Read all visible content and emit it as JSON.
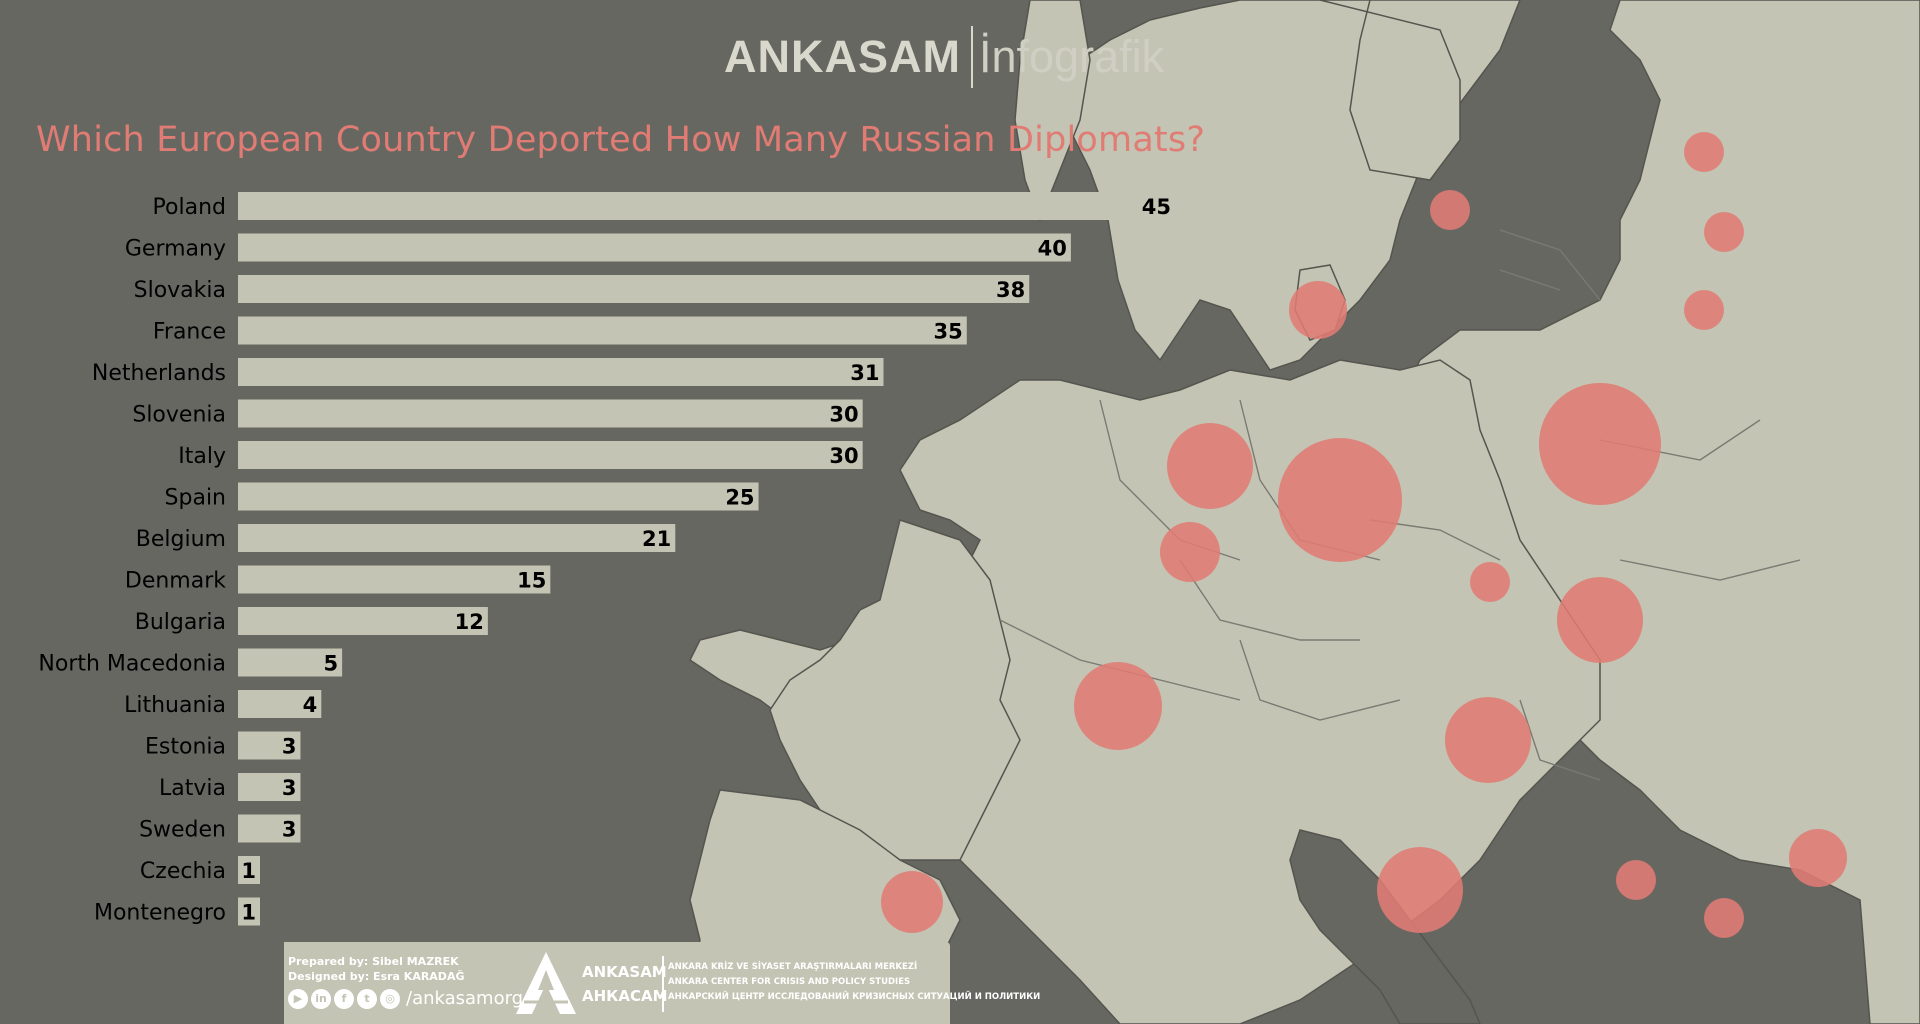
{
  "brand": {
    "name": "ANKASAM",
    "subtitle": "İnfografik"
  },
  "chart_data": {
    "type": "bar",
    "title": "Which European Country Deported How Many Russian Diplomats?",
    "orientation": "horizontal",
    "categories": [
      "Poland",
      "Germany",
      "Slovakia",
      "France",
      "Netherlands",
      "Slovenia",
      "Italy",
      "Spain",
      "Belgium",
      "Denmark",
      "Bulgaria",
      "North Macedonia",
      "Lithuania",
      "Estonia",
      "Latvia",
      "Sweden",
      "Czechia",
      "Montenegro"
    ],
    "values": [
      45,
      40,
      38,
      35,
      31,
      30,
      30,
      25,
      21,
      15,
      12,
      5,
      4,
      3,
      3,
      3,
      1,
      1
    ],
    "xlim": [
      0,
      45
    ],
    "data_labels": true,
    "grid": false,
    "bar_color": "#c4c4b4",
    "map_bubble_color": "#e07c74"
  },
  "colors": {
    "background": "#676762",
    "land": "#c4c4b4",
    "title": "#e07c74"
  },
  "footer": {
    "prepared_by": "Prepared by: Sibel MAZREK",
    "designed_by": "Designed by: Esra KARADAĞ",
    "social_handle": "/ankasamorg",
    "social_icons": [
      "youtube-icon",
      "linkedin-icon",
      "facebook-icon",
      "twitter-icon",
      "instagram-icon"
    ],
    "org_name_1": "ANKASAM",
    "org_name_2": "АНКАСАМ",
    "org_line_1": "ANKARA KRİZ VE SİYASET ARAŞTIRMALARI MERKEZİ",
    "org_line_2": "ANKARA CENTER FOR CRISIS AND POLICY STUDIES",
    "org_line_3": "АНКАРСКИЙ ЦЕНТР ИССЛЕДОВАНИЙ КРИЗИСНЫХ СИТУАЦИЙ И ПОЛИТИКИ"
  }
}
